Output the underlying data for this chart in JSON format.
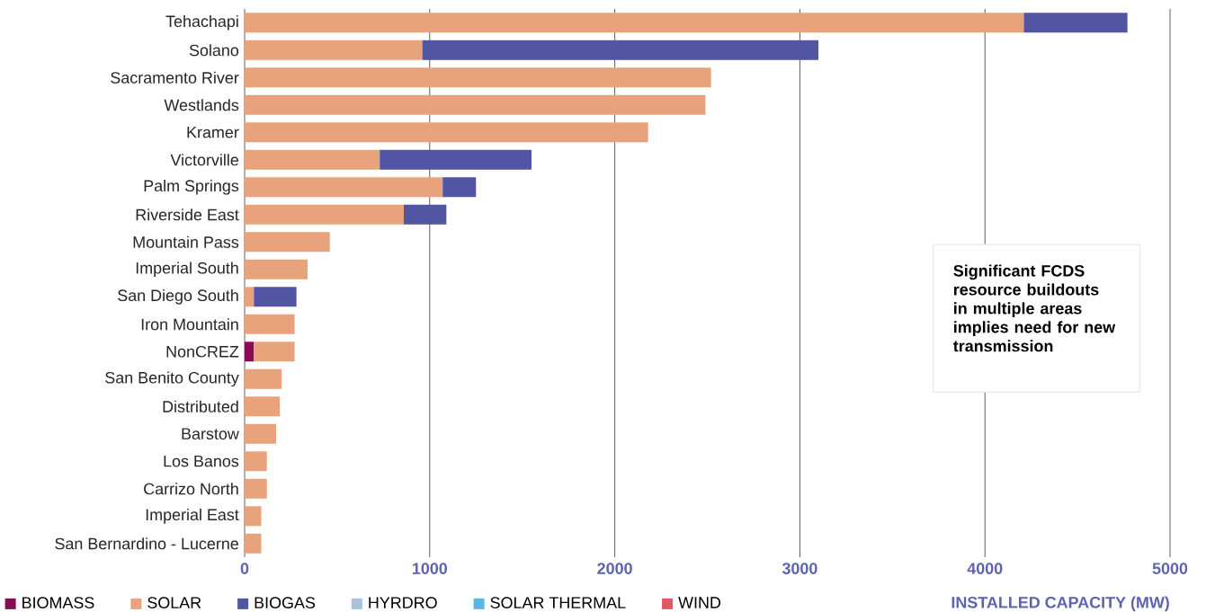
{
  "chart_data": {
    "type": "bar",
    "orientation": "horizontal",
    "stacked": true,
    "categories": [
      "Tehachapi",
      "Solano",
      "Sacramento River",
      "Westlands",
      "Kramer",
      "Victorville",
      "Palm Springs",
      "Riverside East",
      "Mountain Pass",
      "Imperial South",
      "San Diego South",
      "Iron Mountain",
      "NonCREZ",
      "San Benito County",
      "Distributed",
      "Barstow",
      "Los Banos",
      "Carrizo North",
      "Imperial East",
      "San Bernardino - Lucerne"
    ],
    "series": [
      {
        "name": "BIOMASS",
        "color": "#8a0b55",
        "values": [
          null,
          null,
          null,
          null,
          null,
          null,
          null,
          null,
          null,
          null,
          null,
          null,
          50,
          null,
          null,
          null,
          null,
          null,
          null,
          null
        ]
      },
      {
        "name": "SOLAR",
        "color": "#e8a27c",
        "values": [
          4210,
          960,
          2520,
          2490,
          2180,
          730,
          1070,
          860,
          460,
          340,
          50,
          270,
          220,
          200,
          190,
          170,
          120,
          120,
          90,
          90
        ]
      },
      {
        "name": "BIOGAS",
        "color": "#5155a4",
        "values": [
          560,
          2140,
          null,
          null,
          null,
          820,
          180,
          230,
          null,
          null,
          230,
          null,
          null,
          null,
          null,
          null,
          null,
          null,
          null,
          null
        ]
      },
      {
        "name": "HYRDRO",
        "color": "#a9c1d9",
        "values": [
          null,
          null,
          null,
          null,
          null,
          null,
          null,
          null,
          null,
          null,
          null,
          null,
          null,
          null,
          null,
          null,
          null,
          null,
          null,
          null
        ]
      },
      {
        "name": "SOLAR THERMAL",
        "color": "#57b8e6",
        "values": [
          null,
          null,
          null,
          null,
          null,
          null,
          null,
          null,
          null,
          null,
          null,
          null,
          null,
          null,
          null,
          null,
          null,
          null,
          null,
          null
        ]
      },
      {
        "name": "WIND",
        "color": "#e25767",
        "values": [
          null,
          null,
          null,
          null,
          null,
          null,
          null,
          null,
          null,
          null,
          null,
          null,
          null,
          null,
          null,
          null,
          null,
          null,
          null,
          null
        ]
      }
    ],
    "xlim": [
      0,
      5000
    ],
    "xticks": [
      0,
      1000,
      2000,
      3000,
      4000,
      5000
    ],
    "xlabel": "INSTALLED CAPACITY (MW)",
    "grid": "x",
    "legend": "bottom",
    "annotations": [
      "Significant FCDS resource buildouts in multiple areas implies need for new transmission"
    ]
  }
}
